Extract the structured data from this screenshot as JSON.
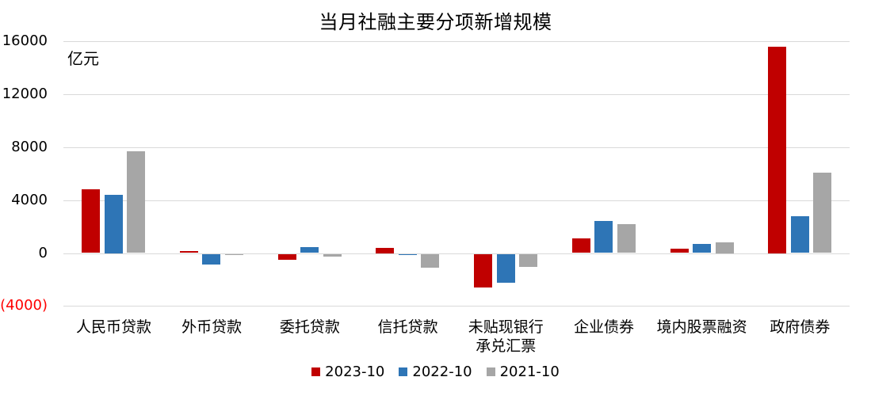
{
  "chart_data": {
    "type": "bar",
    "title": "当月社融主要分项新增规模",
    "ylabel": "亿元",
    "xlabel": "",
    "ylim": [
      -4000,
      16000
    ],
    "grid": true,
    "legend_position": "bottom",
    "y_ticks": [
      {
        "value": 16000,
        "label": "16000",
        "label_color": "#000000"
      },
      {
        "value": 12000,
        "label": "12000",
        "label_color": "#000000"
      },
      {
        "value": 8000,
        "label": "8000",
        "label_color": "#000000"
      },
      {
        "value": 4000,
        "label": "4000",
        "label_color": "#000000"
      },
      {
        "value": 0,
        "label": "0",
        "label_color": "#000000"
      },
      {
        "value": -4000,
        "label": "(4000)",
        "label_color": "#ff0000"
      }
    ],
    "categories": [
      "人民币贷款",
      "外币贷款",
      "委托贷款",
      "信托贷款",
      "未贴现银行承兑汇票",
      "企业债券",
      "境内股票融资",
      "政府债券"
    ],
    "series": [
      {
        "name": "2023-10",
        "color": "#c00000",
        "values": [
          4830,
          140,
          -430,
          390,
          -2550,
          1100,
          350,
          15600
        ]
      },
      {
        "name": "2022-10",
        "color": "#2e75b6",
        "values": [
          4430,
          -780,
          470,
          -60,
          -2200,
          2400,
          700,
          2780
        ]
      },
      {
        "name": "2021-10",
        "color": "#a6a6a6",
        "values": [
          7700,
          -30,
          -200,
          -1060,
          -1000,
          2170,
          840,
          6100
        ]
      }
    ]
  },
  "colors": {
    "gridline": "#d9d9d9",
    "text": "#000000",
    "negative_tick": "#ff0000",
    "background": "#ffffff"
  }
}
